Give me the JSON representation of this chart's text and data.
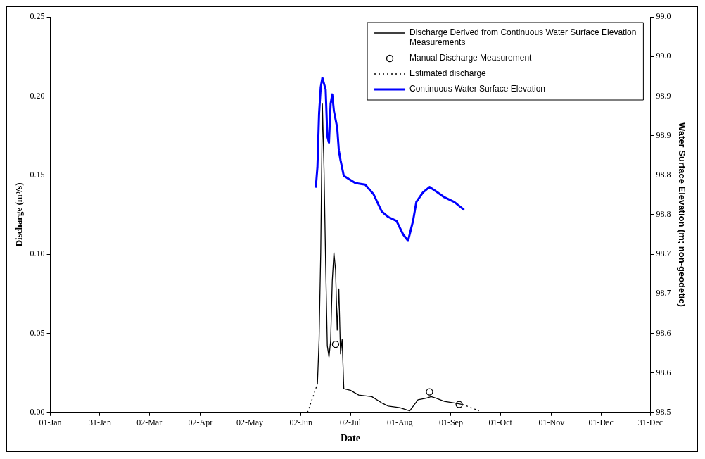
{
  "chart_data": {
    "type": "line",
    "xlabel": "Date",
    "ylabel": "Discharge (m³/s)",
    "y2label": "Water Surface Elevation (m; non-geodetic)",
    "xlim": [
      "--01-01",
      "--12-31"
    ],
    "xticks": [
      {
        "value": "--01-01",
        "label": "01-Jan"
      },
      {
        "value": "--01-31",
        "label": "31-Jan"
      },
      {
        "value": "--03-02",
        "label": "02-Mar"
      },
      {
        "value": "--04-02",
        "label": "02-Apr"
      },
      {
        "value": "--05-02",
        "label": "02-May"
      },
      {
        "value": "--06-02",
        "label": "02-Jun"
      },
      {
        "value": "--07-02",
        "label": "02-Jul"
      },
      {
        "value": "--08-01",
        "label": "01-Aug"
      },
      {
        "value": "--09-01",
        "label": "01-Sep"
      },
      {
        "value": "--10-01",
        "label": "01-Oct"
      },
      {
        "value": "--11-01",
        "label": "01-Nov"
      },
      {
        "value": "--12-01",
        "label": "01-Dec"
      },
      {
        "value": "--12-31",
        "label": "31-Dec"
      }
    ],
    "ylim": [
      0,
      0.25
    ],
    "yticks": [
      {
        "value": 0,
        "label": "0.00"
      },
      {
        "value": 0.05,
        "label": "0.05"
      },
      {
        "value": 0.1,
        "label": "0.10"
      },
      {
        "value": 0.15,
        "label": "0.15"
      },
      {
        "value": 0.2,
        "label": "0.20"
      },
      {
        "value": 0.25,
        "label": "0.25"
      }
    ],
    "y2lim": [
      98.5,
      99.0
    ],
    "y2ticks": [
      {
        "value": 98.5,
        "label": "98.5"
      },
      {
        "value": 98.55,
        "label": "98.6"
      },
      {
        "value": 98.6,
        "label": "98.6"
      },
      {
        "value": 98.65,
        "label": "98.7"
      },
      {
        "value": 98.7,
        "label": "98.7"
      },
      {
        "value": 98.75,
        "label": "98.8"
      },
      {
        "value": 98.8,
        "label": "98.8"
      },
      {
        "value": 98.85,
        "label": "98.9"
      },
      {
        "value": 98.9,
        "label": "98.9"
      },
      {
        "value": 98.95,
        "label": "99.0"
      },
      {
        "value": 99.0,
        "label": "99.0"
      }
    ],
    "grid": false,
    "legend": "top right",
    "series": [
      {
        "name": "Discharge Derived from Continuous Water Surface Elevation Measurements",
        "color": "#000000",
        "line_style": "solid",
        "marker": "none",
        "x": [
          "--06-12",
          "--06-13",
          "--06-14",
          "--06-15",
          "--06-16",
          "--06-17",
          "--06-18",
          "--06-19",
          "--06-20",
          "--06-21",
          "--06-22",
          "--06-23",
          "--06-24",
          "--06-25",
          "--06-26",
          "--06-27",
          "--06-28",
          "--07-02",
          "--07-07",
          "--07-15",
          "--07-21",
          "--07-25",
          "--08-01",
          "--08-07",
          "--08-12",
          "--08-17",
          "--08-20",
          "--08-23",
          "--08-28",
          "--09-03",
          "--09-08"
        ],
        "values": [
          0.018,
          0.046,
          0.101,
          0.195,
          0.154,
          0.093,
          0.042,
          0.035,
          0.045,
          0.083,
          0.101,
          0.09,
          0.052,
          0.078,
          0.037,
          0.046,
          0.015,
          0.014,
          0.011,
          0.01,
          0.006,
          0.004,
          0.003,
          0.001,
          0.008,
          0.009,
          0.01,
          0.009,
          0.007,
          0.006,
          0.005
        ]
      },
      {
        "name": "Manual Discharge Measurement",
        "type": "scatter",
        "color": "#000000",
        "marker": "circle",
        "x": [
          "--06-23",
          "--08-19",
          "--09-06"
        ],
        "values": [
          0.043,
          0.013,
          0.005
        ]
      },
      {
        "name": "Estimated discharge",
        "color": "#000000",
        "line_style": "dotted",
        "marker": "none",
        "x": [
          "--06-06",
          "--06-12",
          "--07-15",
          "--09-08",
          "--09-18"
        ],
        "values": [
          0.0,
          0.018,
          null,
          0.005,
          0.001
        ]
      },
      {
        "name": "Continuous Water Surface Elevation",
        "axis": "y2",
        "color": "#0000ff",
        "line_style": "solid",
        "marker": "none",
        "x": [
          "--06-11",
          "--06-12",
          "--06-13",
          "--06-14",
          "--06-15",
          "--06-17",
          "--06-18",
          "--06-19",
          "--06-20",
          "--06-21",
          "--06-22",
          "--06-24",
          "--06-25",
          "--06-26",
          "--06-28",
          "--07-05",
          "--07-11",
          "--07-16",
          "--07-21",
          "--07-25",
          "--07-30",
          "--08-03",
          "--08-06",
          "--08-09",
          "--08-11",
          "--08-15",
          "--08-19",
          "--08-24",
          "--08-28",
          "--09-03",
          "--09-09"
        ],
        "values": [
          98.784,
          98.81,
          98.878,
          98.911,
          98.923,
          98.908,
          98.849,
          98.841,
          98.89,
          98.902,
          98.881,
          98.86,
          98.831,
          98.819,
          98.799,
          98.79,
          98.788,
          98.776,
          98.754,
          98.747,
          98.742,
          98.725,
          98.717,
          98.742,
          98.766,
          98.778,
          98.785,
          98.778,
          98.772,
          98.766,
          98.756
        ]
      }
    ]
  }
}
